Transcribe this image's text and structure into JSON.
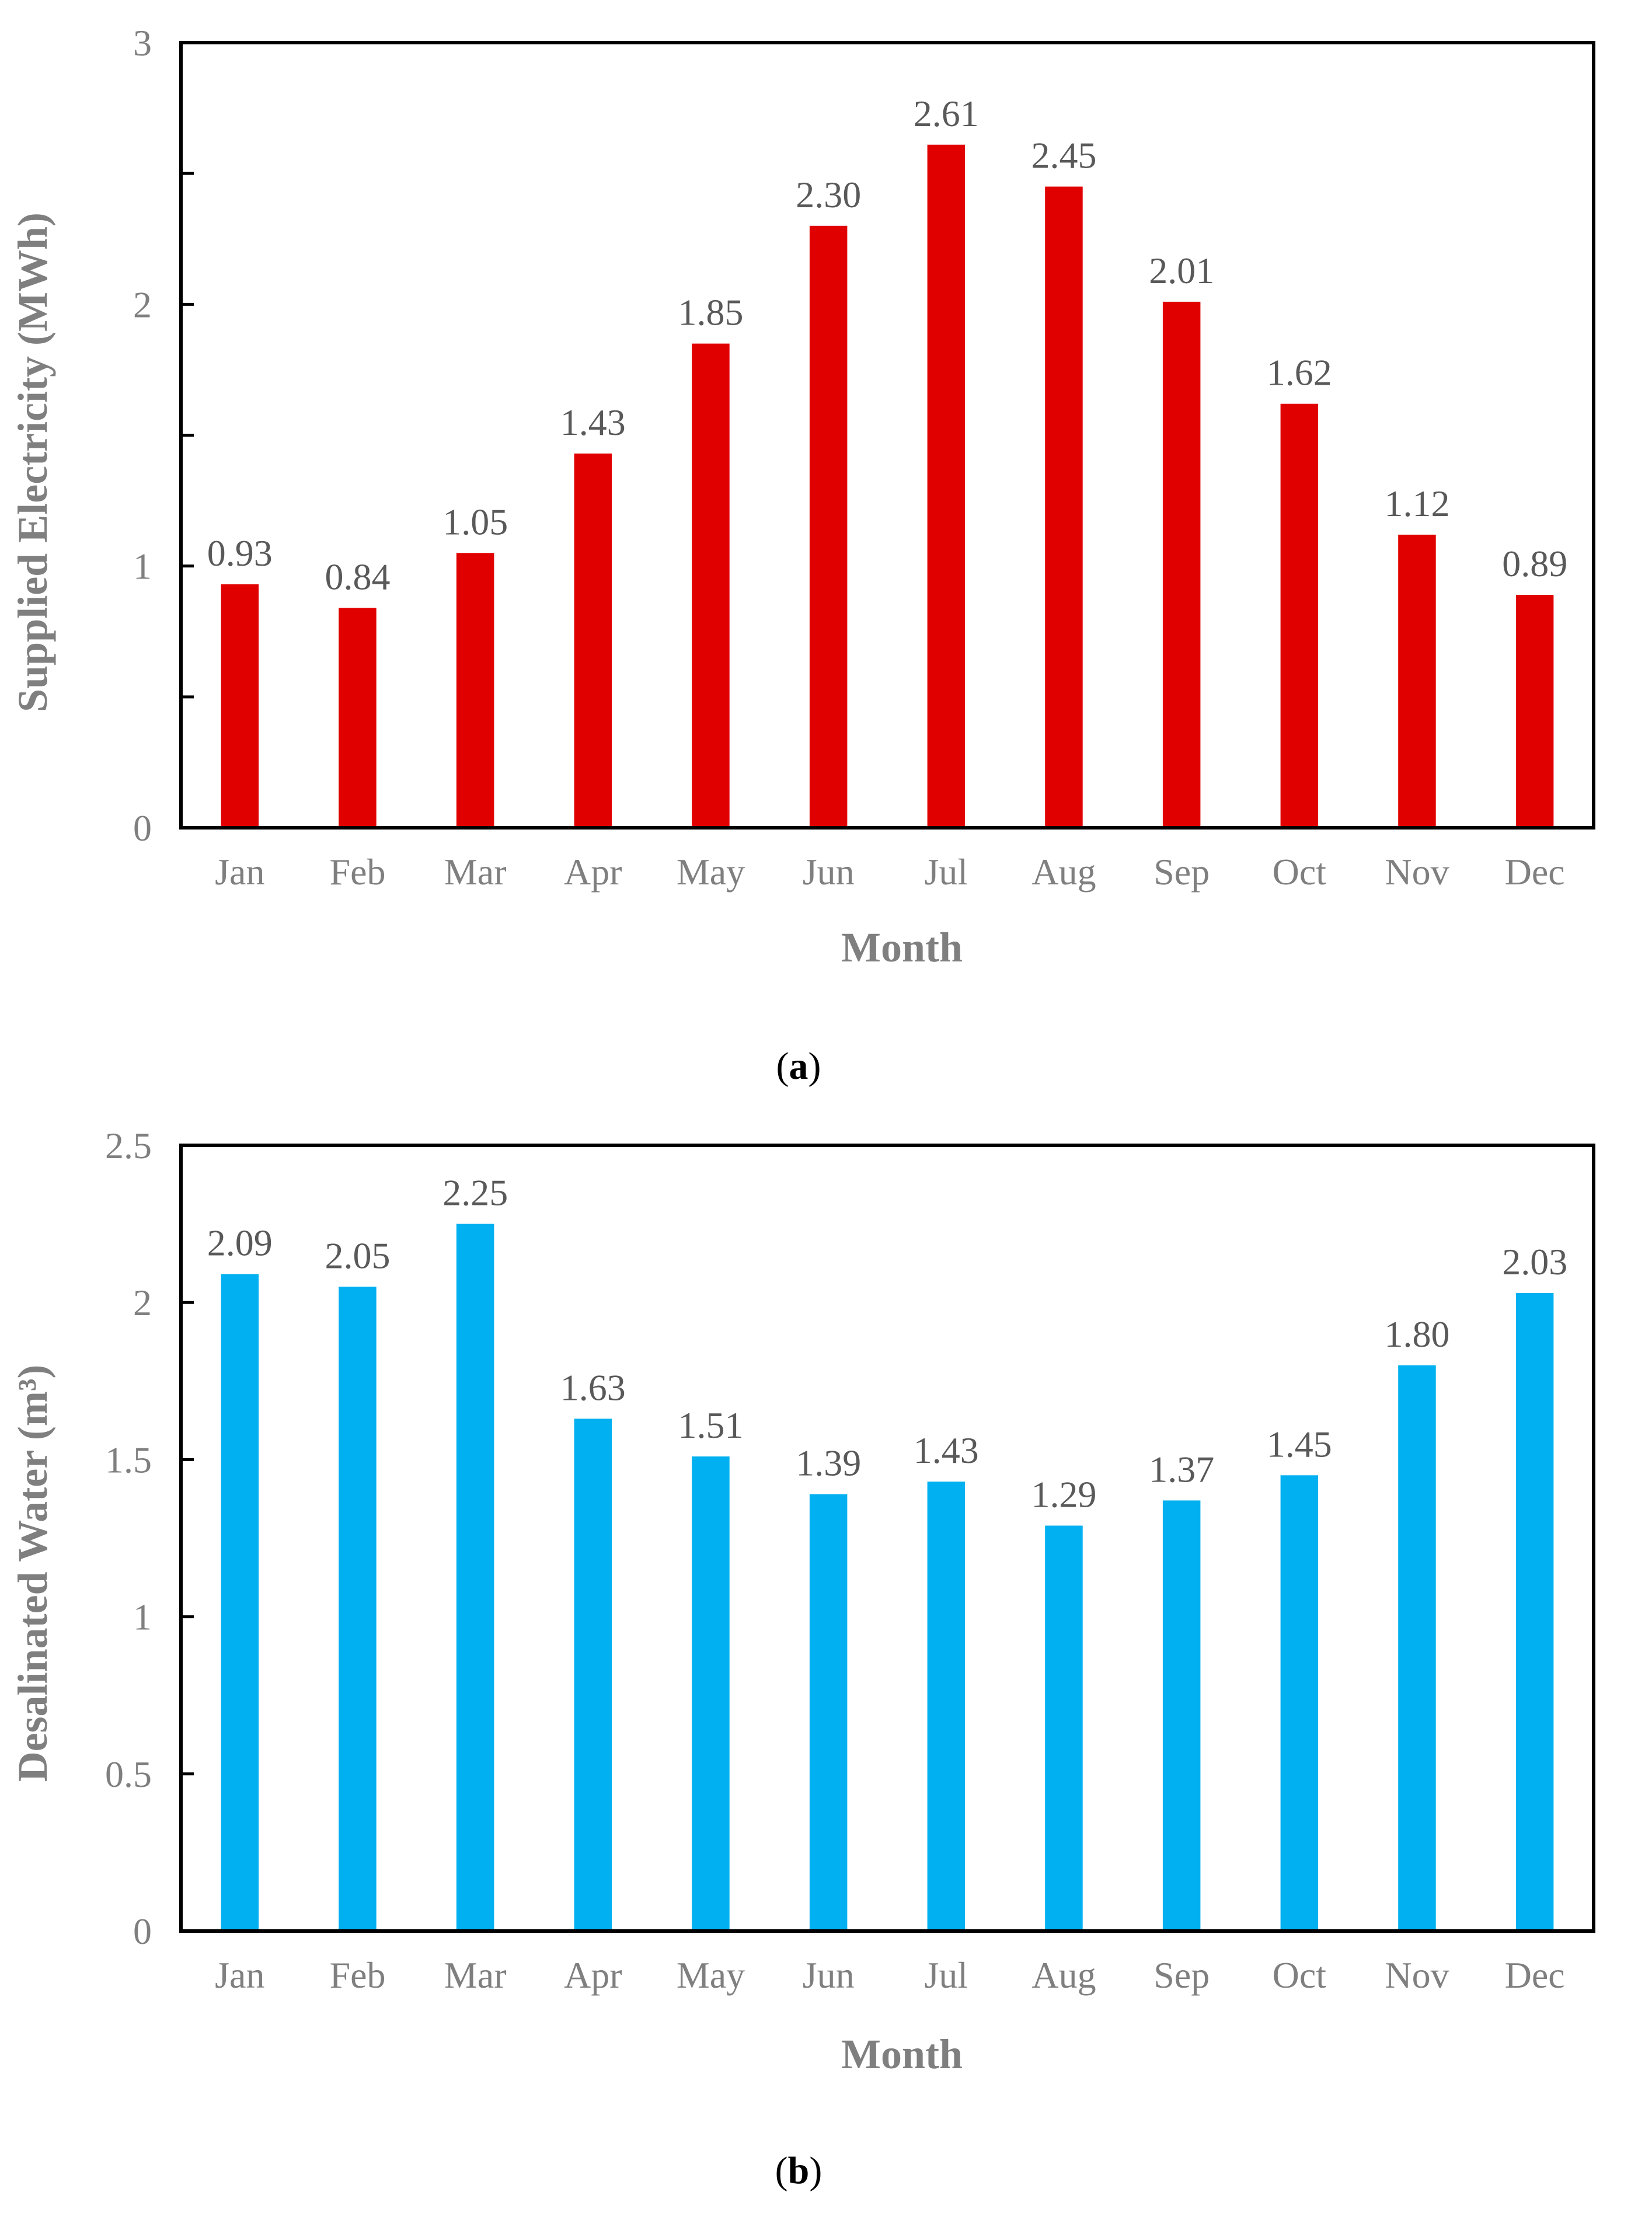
{
  "chart_data": [
    {
      "type": "bar",
      "panel_label": "a",
      "xlabel": "Month",
      "ylabel": "Supplied Electricity (MWh)",
      "categories": [
        "Jan",
        "Feb",
        "Mar",
        "Apr",
        "May",
        "Jun",
        "Jul",
        "Aug",
        "Sep",
        "Oct",
        "Nov",
        "Dec"
      ],
      "values": [
        0.93,
        0.84,
        1.05,
        1.43,
        1.85,
        2.3,
        2.61,
        2.45,
        2.01,
        1.62,
        1.12,
        0.89
      ],
      "value_labels": [
        "0.93",
        "0.84",
        "1.05",
        "1.43",
        "1.85",
        "2.30",
        "2.61",
        "2.45",
        "2.01",
        "1.62",
        "1.12",
        "0.89"
      ],
      "ylim": [
        0,
        3
      ],
      "yticks": [
        0,
        1,
        2,
        3
      ],
      "ytick_labels": [
        "0",
        "1",
        "2",
        "3"
      ],
      "minor_yticks": [
        0.5,
        1.5,
        2.5
      ],
      "bar_color": "#e10000",
      "grid": false
    },
    {
      "type": "bar",
      "panel_label": "b",
      "xlabel": "Month",
      "ylabel": "Desalinated Water (m³)",
      "categories": [
        "Jan",
        "Feb",
        "Mar",
        "Apr",
        "May",
        "Jun",
        "Jul",
        "Aug",
        "Sep",
        "Oct",
        "Nov",
        "Dec"
      ],
      "values": [
        2.09,
        2.05,
        2.25,
        1.63,
        1.51,
        1.39,
        1.43,
        1.29,
        1.37,
        1.45,
        1.8,
        2.03
      ],
      "value_labels": [
        "2.09",
        "2.05",
        "2.25",
        "1.63",
        "1.51",
        "1.39",
        "1.43",
        "1.29",
        "1.37",
        "1.45",
        "1.80",
        "2.03"
      ],
      "ylim": [
        0,
        2.5
      ],
      "yticks": [
        0,
        0.5,
        1,
        1.5,
        2,
        2.5
      ],
      "ytick_labels": [
        "0",
        "0.5",
        "1",
        "1.5",
        "2",
        "2.5"
      ],
      "minor_yticks": [],
      "bar_color": "#00b0f0",
      "grid": false
    }
  ]
}
